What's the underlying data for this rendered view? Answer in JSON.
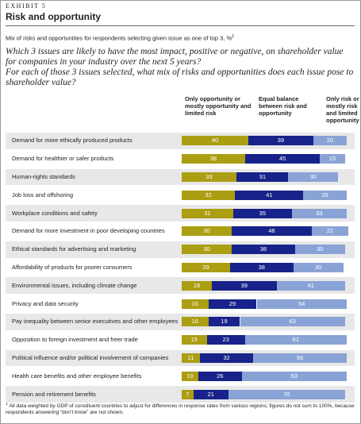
{
  "chart_data": {
    "type": "bar",
    "orientation": "horizontal",
    "stacked": true,
    "exhibit": "EXHIBIT 5",
    "title": "Risk and opportunity",
    "subtitle": "Mix of risks and opportunities for respondents selecting given issue as one of top 3, %",
    "subtitle_note": "1",
    "question": [
      "Which 3 issues are likely to have the most impact, positive or negative, on shareholder value for companies in your industry over the next 5 years?",
      "For each of those 3 issues selected, what mix of risks and opportunities does each issue pose to shareholder value?"
    ],
    "categories": [
      "Demand for more ethically produced products",
      "Demand for healthier or safer products",
      "Human-rights standards",
      "Job loss and offshoring",
      "Workplace conditions and safety",
      "Demand for more investment in poor developing countries",
      "Ethical standards for advertising and marketing",
      "Affordability of products for poorer consumers",
      "Environmental issues, including climate change",
      "Privacy and data security",
      "Pay inequality between senior executives and other employees",
      "Opposition to foreign investment and freer trade",
      "Political influence and/or political involvement of companies",
      "Health care benefits and other employee benefits",
      "Pension and retirement benefits"
    ],
    "series": [
      {
        "name": "Only opportunity or mostly opportunity and limited risk",
        "color": "#ab9e12",
        "values": [
          40,
          38,
          33,
          32,
          31,
          30,
          30,
          29,
          18,
          16,
          16,
          15,
          11,
          10,
          7
        ]
      },
      {
        "name": "Equal balance between risk and opportunity",
        "color": "#17238a",
        "values": [
          39,
          45,
          31,
          41,
          35,
          48,
          38,
          38,
          39,
          29,
          19,
          23,
          32,
          26,
          21
        ]
      },
      {
        "name": "Only risk or mostly risk and limited opportunity",
        "color": "#8aa3d6",
        "values": [
          20,
          15,
          30,
          26,
          33,
          22,
          30,
          30,
          41,
          54,
          63,
          61,
          56,
          63,
          70
        ]
      }
    ],
    "footnote_marker": "1",
    "footnote": "All data weighted by GDP of constituent countries to adjust for differences in response rates from various regions; figures do not sum to 100%, because respondents answering “don’t know” are not shown."
  }
}
